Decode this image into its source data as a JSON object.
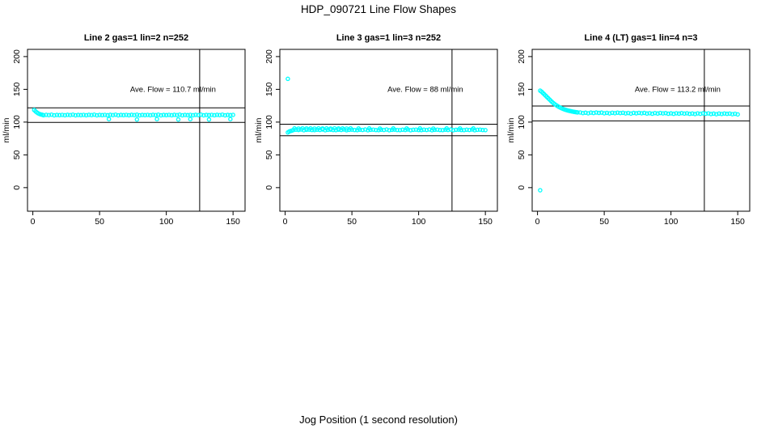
{
  "chart_data": {
    "type": "scatter",
    "title": "HDP_090721  Line Flow Shapes",
    "xlabel": "Jog Position (1 second resolution)",
    "ylabel": "ml/min",
    "x_ticks": [
      0,
      50,
      100,
      150
    ],
    "y_ticks": [
      0,
      50,
      100,
      150,
      200
    ],
    "x_range_drawn": [
      -4,
      159
    ],
    "y_range_drawn": [
      -36,
      211
    ],
    "vline_x": 125,
    "grid": false,
    "legend": "none",
    "point_color": "#00ffff",
    "line_color": "#000000",
    "background": "#ffffff",
    "annotation_anchor": {
      "x": 105,
      "y": 150
    },
    "plots": [
      {
        "title": "Line 2 gas=1 lin=2 n=252",
        "annotation": "Ave. Flow =  110.7  ml/min",
        "ave_flow": 110.7,
        "band_lines": [
          121.8,
          99.6
        ],
        "points": [
          [
            1,
            118.5
          ],
          [
            2,
            116.5
          ],
          [
            3,
            114.8
          ],
          [
            4,
            113.4
          ],
          [
            5,
            112.4
          ],
          [
            6,
            111.7
          ],
          [
            7,
            111.2
          ],
          [
            8,
            110.5
          ],
          [
            10,
            111.1
          ],
          [
            12,
            110.7
          ],
          [
            14,
            111.3
          ],
          [
            16,
            110.4
          ],
          [
            18,
            110.9
          ],
          [
            20,
            110.6
          ],
          [
            22,
            111.0
          ],
          [
            24,
            110.5
          ],
          [
            26,
            111.1
          ],
          [
            28,
            110.7
          ],
          [
            30,
            111.3
          ],
          [
            32,
            110.4
          ],
          [
            34,
            110.9
          ],
          [
            36,
            110.6
          ],
          [
            38,
            111.0
          ],
          [
            40,
            110.5
          ],
          [
            42,
            111.1
          ],
          [
            44,
            110.7
          ],
          [
            46,
            111.3
          ],
          [
            48,
            110.4
          ],
          [
            50,
            110.9
          ],
          [
            52,
            110.6
          ],
          [
            54,
            111.0
          ],
          [
            56,
            110.5
          ],
          [
            58,
            111.1
          ],
          [
            60,
            110.7
          ],
          [
            62,
            111.3
          ],
          [
            64,
            110.4
          ],
          [
            66,
            110.9
          ],
          [
            68,
            110.6
          ],
          [
            70,
            111.0
          ],
          [
            72,
            110.5
          ],
          [
            74,
            111.1
          ],
          [
            76,
            110.7
          ],
          [
            78,
            111.3
          ],
          [
            80,
            110.4
          ],
          [
            82,
            110.9
          ],
          [
            84,
            110.6
          ],
          [
            86,
            111.0
          ],
          [
            88,
            110.5
          ],
          [
            90,
            111.1
          ],
          [
            92,
            110.7
          ],
          [
            94,
            111.3
          ],
          [
            96,
            110.4
          ],
          [
            98,
            110.9
          ],
          [
            100,
            110.6
          ],
          [
            102,
            111.0
          ],
          [
            104,
            110.5
          ],
          [
            106,
            111.1
          ],
          [
            108,
            110.7
          ],
          [
            110,
            111.3
          ],
          [
            112,
            110.4
          ],
          [
            114,
            110.9
          ],
          [
            116,
            110.6
          ],
          [
            118,
            111.0
          ],
          [
            120,
            110.5
          ],
          [
            122,
            111.1
          ],
          [
            124,
            110.7
          ],
          [
            126,
            111.3
          ],
          [
            128,
            110.4
          ],
          [
            130,
            110.9
          ],
          [
            132,
            110.6
          ],
          [
            134,
            111.0
          ],
          [
            136,
            110.5
          ],
          [
            138,
            111.1
          ],
          [
            140,
            110.7
          ],
          [
            142,
            111.3
          ],
          [
            144,
            110.4
          ],
          [
            146,
            110.9
          ],
          [
            148,
            110.6
          ],
          [
            150,
            111.0
          ],
          [
            57,
            104.5
          ],
          [
            78,
            104.0
          ],
          [
            93,
            104.5
          ],
          [
            109,
            104.0
          ],
          [
            118,
            104.5
          ],
          [
            132,
            104.0
          ],
          [
            148,
            104.5
          ]
        ]
      },
      {
        "title": "Line 3 gas=1 lin=3 n=252",
        "annotation": "Ave. Flow =  88  ml/min",
        "ave_flow": 88,
        "band_lines": [
          96.8,
          79.2
        ],
        "points": [
          [
            2,
            166
          ],
          [
            2,
            84.2
          ],
          [
            3,
            85.6
          ],
          [
            4,
            86.4
          ],
          [
            5,
            87.0
          ],
          [
            6,
            87.8
          ],
          [
            8,
            88.4
          ],
          [
            10,
            88.0
          ],
          [
            12,
            88.7
          ],
          [
            14,
            87.6
          ],
          [
            16,
            88.2
          ],
          [
            18,
            88.5
          ],
          [
            20,
            87.9
          ],
          [
            22,
            87.8
          ],
          [
            24,
            88.4
          ],
          [
            26,
            88.0
          ],
          [
            28,
            88.7
          ],
          [
            30,
            87.6
          ],
          [
            32,
            88.2
          ],
          [
            34,
            88.5
          ],
          [
            36,
            87.9
          ],
          [
            38,
            87.8
          ],
          [
            40,
            88.4
          ],
          [
            42,
            88.0
          ],
          [
            44,
            88.7
          ],
          [
            46,
            87.6
          ],
          [
            48,
            88.2
          ],
          [
            50,
            88.5
          ],
          [
            52,
            87.9
          ],
          [
            54,
            87.8
          ],
          [
            56,
            88.4
          ],
          [
            58,
            88.0
          ],
          [
            60,
            88.7
          ],
          [
            62,
            87.6
          ],
          [
            64,
            88.2
          ],
          [
            66,
            88.5
          ],
          [
            68,
            87.9
          ],
          [
            70,
            87.8
          ],
          [
            72,
            88.4
          ],
          [
            74,
            88.0
          ],
          [
            76,
            88.7
          ],
          [
            78,
            87.6
          ],
          [
            80,
            88.2
          ],
          [
            82,
            88.5
          ],
          [
            84,
            87.9
          ],
          [
            86,
            87.8
          ],
          [
            88,
            88.4
          ],
          [
            90,
            88.0
          ],
          [
            92,
            88.7
          ],
          [
            94,
            87.6
          ],
          [
            96,
            88.2
          ],
          [
            98,
            88.5
          ],
          [
            100,
            87.9
          ],
          [
            102,
            87.8
          ],
          [
            104,
            88.4
          ],
          [
            106,
            88.0
          ],
          [
            108,
            88.7
          ],
          [
            110,
            87.6
          ],
          [
            112,
            88.2
          ],
          [
            114,
            88.5
          ],
          [
            116,
            87.9
          ],
          [
            118,
            87.8
          ],
          [
            120,
            88.4
          ],
          [
            122,
            88.0
          ],
          [
            124,
            88.7
          ],
          [
            126,
            87.6
          ],
          [
            128,
            88.2
          ],
          [
            130,
            88.5
          ],
          [
            132,
            87.9
          ],
          [
            134,
            87.8
          ],
          [
            136,
            88.4
          ],
          [
            138,
            88.0
          ],
          [
            140,
            88.7
          ],
          [
            142,
            87.6
          ],
          [
            144,
            88.2
          ],
          [
            146,
            88.5
          ],
          [
            148,
            87.9
          ],
          [
            150,
            87.8
          ],
          [
            7,
            90.4
          ],
          [
            10,
            90.2
          ],
          [
            13,
            90.5
          ],
          [
            16,
            90.3
          ],
          [
            19,
            90.4
          ],
          [
            22,
            90.2
          ],
          [
            25,
            90.5
          ],
          [
            28,
            90.3
          ],
          [
            31,
            90.4
          ],
          [
            34,
            90.2
          ],
          [
            37,
            90.5
          ],
          [
            40,
            90.3
          ],
          [
            43,
            90.4
          ],
          [
            46,
            90.2
          ],
          [
            49,
            90.5
          ],
          [
            55,
            90.3
          ],
          [
            63,
            90.4
          ],
          [
            71,
            90.2
          ],
          [
            81,
            90.4
          ],
          [
            91,
            90.3
          ],
          [
            101,
            90.4
          ],
          [
            111,
            90.2
          ],
          [
            121,
            90.4
          ],
          [
            131,
            90.3
          ],
          [
            141,
            90.4
          ]
        ]
      },
      {
        "title": "Line 4 (LT) gas=1 lin=4 n=3",
        "annotation": "Ave. Flow =  113.2  ml/min",
        "ave_flow": 113.2,
        "band_lines": [
          124.5,
          101.9
        ],
        "points": [
          [
            2,
            -4
          ],
          [
            2,
            148
          ],
          [
            3,
            146.5
          ],
          [
            4,
            144.5
          ],
          [
            5,
            142.5
          ],
          [
            6,
            140.5
          ],
          [
            7,
            138.5
          ],
          [
            8,
            136.5
          ],
          [
            9,
            134.5
          ],
          [
            10,
            132.5
          ],
          [
            11,
            130.5
          ],
          [
            12,
            128.8
          ],
          [
            13,
            127.2
          ],
          [
            14,
            125.8
          ],
          [
            15,
            124.5
          ],
          [
            16,
            123.3
          ],
          [
            17,
            122.2
          ],
          [
            18,
            121.2
          ],
          [
            19,
            120.3
          ],
          [
            20,
            119.5
          ],
          [
            21,
            118.8
          ],
          [
            22,
            118.2
          ],
          [
            23,
            117.6
          ],
          [
            24,
            117.1
          ],
          [
            25,
            116.6
          ],
          [
            26,
            116.2
          ],
          [
            27,
            115.8
          ],
          [
            28,
            115.4
          ],
          [
            29,
            115.1
          ],
          [
            30,
            114.8
          ],
          [
            32,
            114.7
          ],
          [
            34,
            113.8
          ],
          [
            36,
            114.3
          ],
          [
            38,
            113.5
          ],
          [
            40,
            114.5
          ],
          [
            42,
            113.9
          ],
          [
            44,
            114.6
          ],
          [
            46,
            114.0
          ],
          [
            48,
            114.5
          ],
          [
            50,
            113.5
          ],
          [
            52,
            114.1
          ],
          [
            54,
            113.3
          ],
          [
            56,
            114.2
          ],
          [
            58,
            113.6
          ],
          [
            60,
            114.4
          ],
          [
            62,
            113.8
          ],
          [
            64,
            114.2
          ],
          [
            66,
            113.3
          ],
          [
            68,
            113.9
          ],
          [
            70,
            113.0
          ],
          [
            72,
            114.0
          ],
          [
            74,
            113.4
          ],
          [
            76,
            114.1
          ],
          [
            78,
            113.5
          ],
          [
            80,
            114.0
          ],
          [
            82,
            113.1
          ],
          [
            84,
            113.6
          ],
          [
            86,
            112.8
          ],
          [
            88,
            113.8
          ],
          [
            90,
            113.1
          ],
          [
            92,
            113.9
          ],
          [
            94,
            113.3
          ],
          [
            96,
            113.7
          ],
          [
            98,
            112.8
          ],
          [
            100,
            113.4
          ],
          [
            102,
            112.6
          ],
          [
            104,
            113.5
          ],
          [
            106,
            112.9
          ],
          [
            108,
            113.7
          ],
          [
            110,
            113.0
          ],
          [
            112,
            113.5
          ],
          [
            114,
            112.6
          ],
          [
            116,
            113.1
          ],
          [
            118,
            112.3
          ],
          [
            120,
            113.3
          ],
          [
            122,
            112.7
          ],
          [
            124,
            113.4
          ],
          [
            126,
            112.8
          ],
          [
            128,
            113.3
          ],
          [
            130,
            112.3
          ],
          [
            132,
            112.9
          ],
          [
            134,
            112.1
          ],
          [
            136,
            113.0
          ],
          [
            138,
            112.4
          ],
          [
            140,
            113.2
          ],
          [
            142,
            112.6
          ],
          [
            144,
            113.0
          ],
          [
            146,
            112.1
          ],
          [
            148,
            112.7
          ],
          [
            150,
            111.8
          ]
        ]
      }
    ]
  }
}
